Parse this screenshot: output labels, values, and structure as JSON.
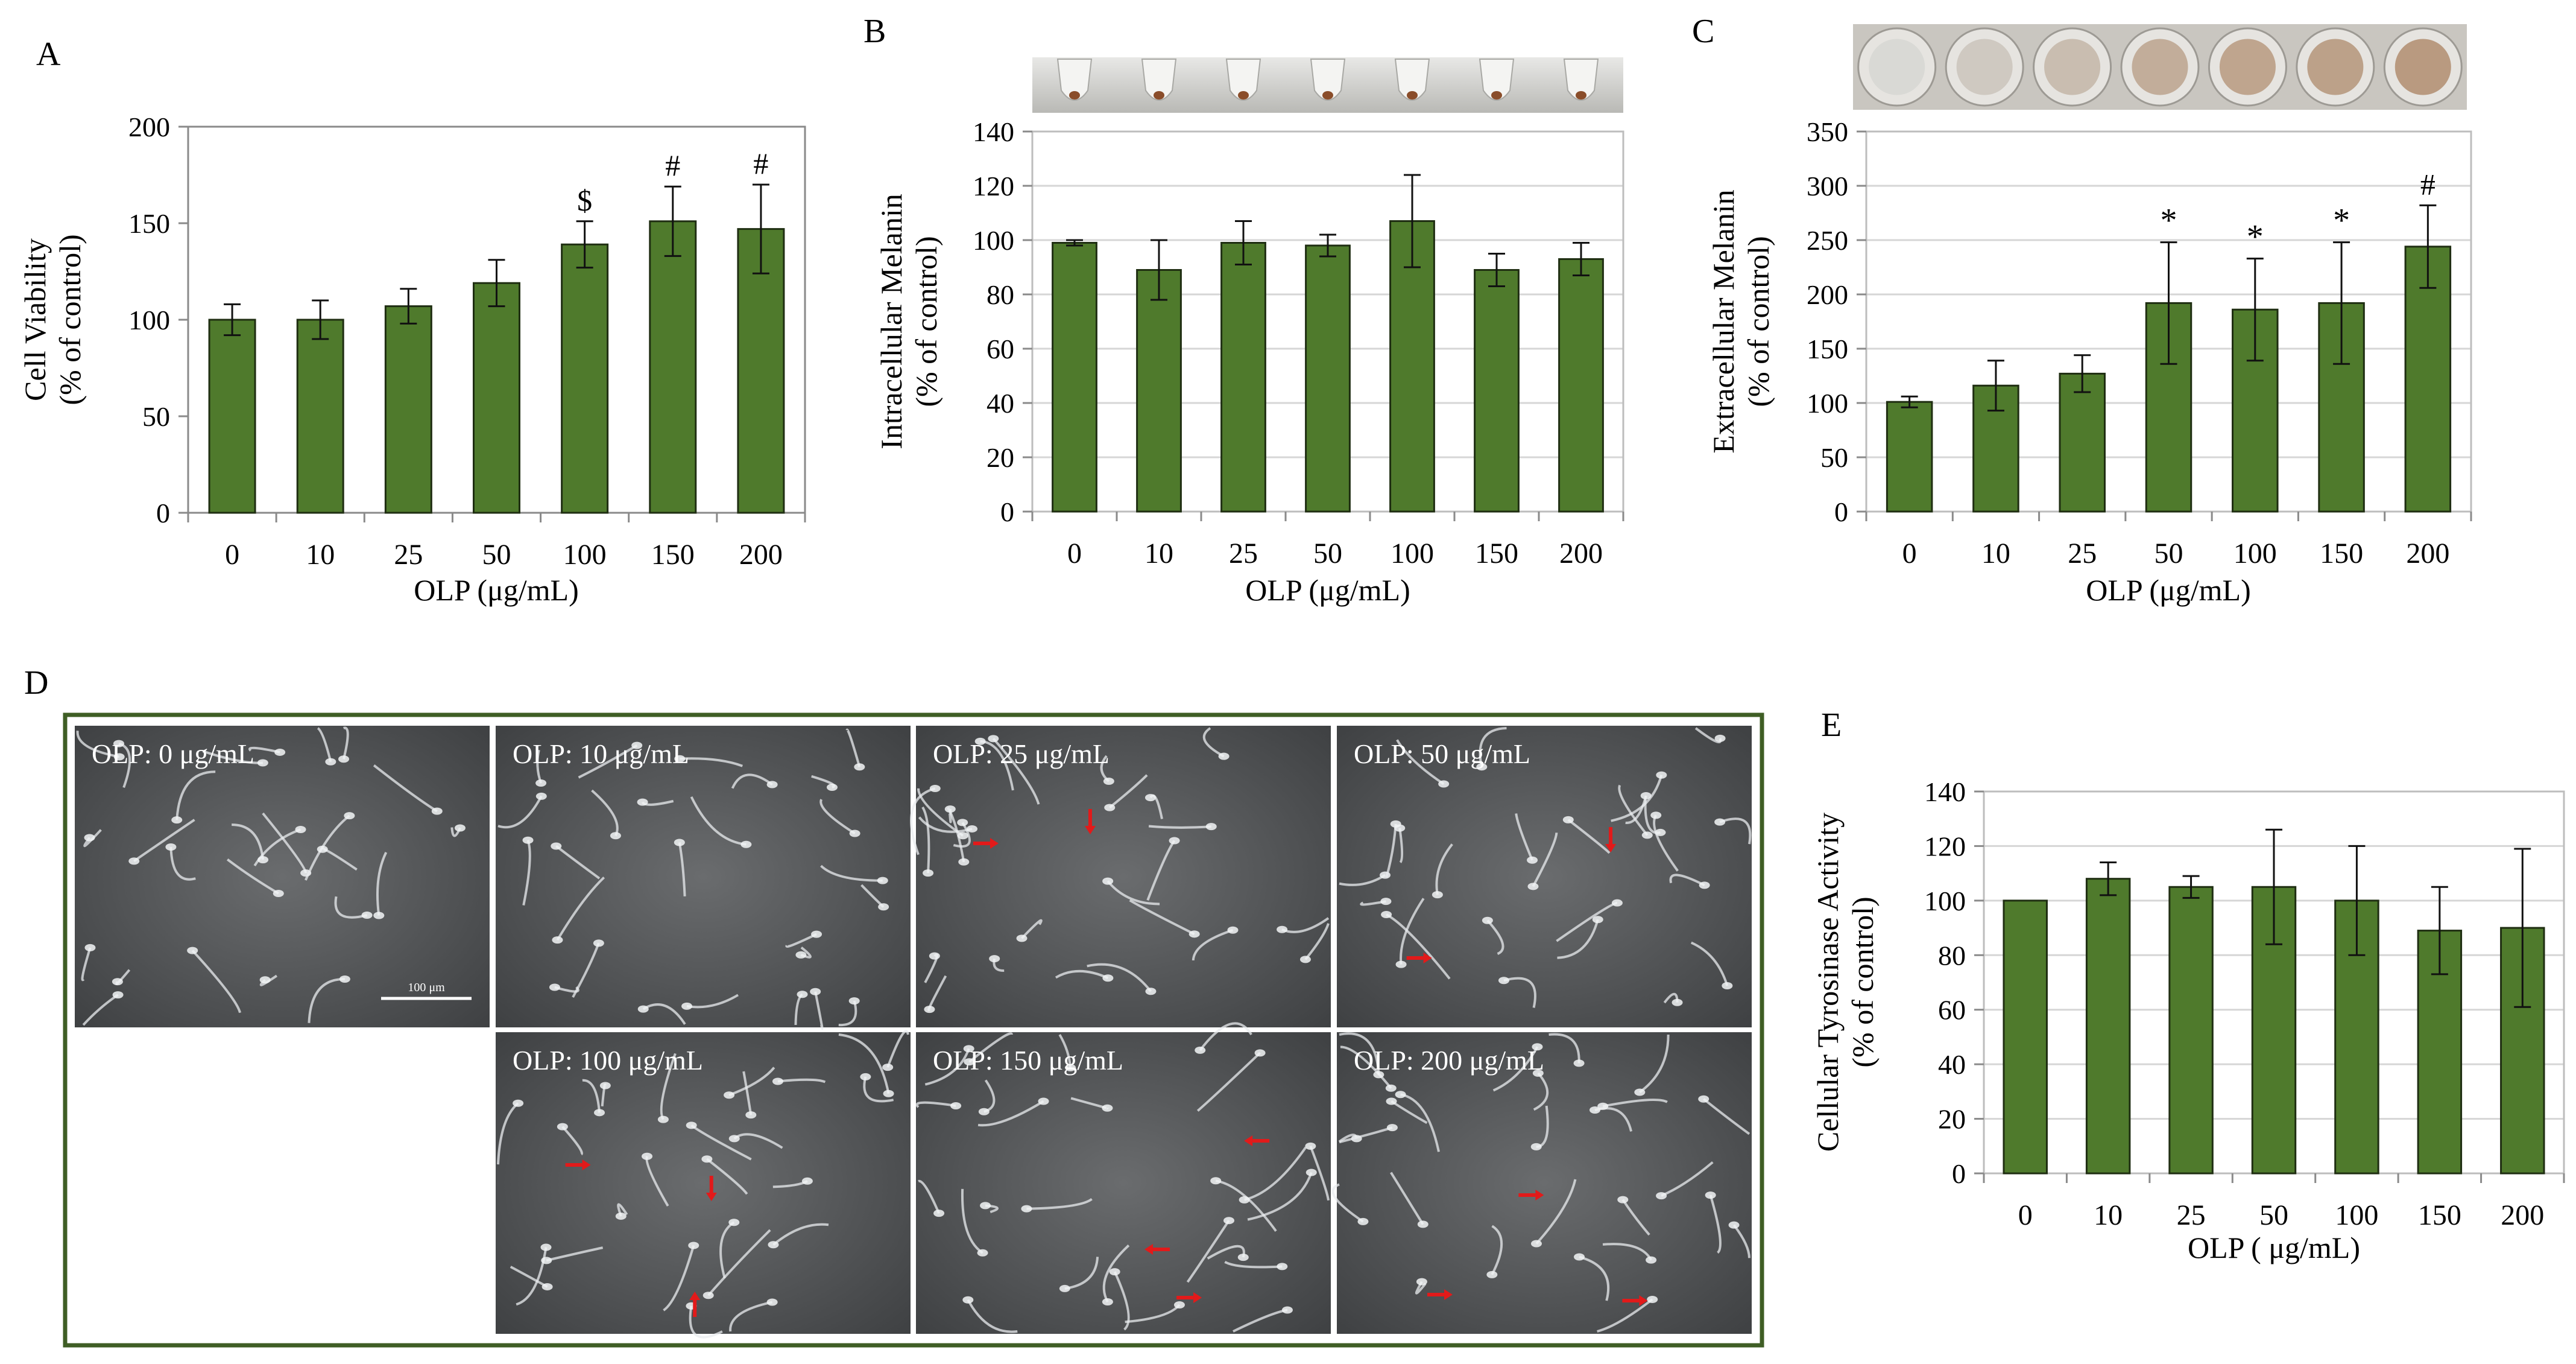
{
  "colors": {
    "bar_fill": "#4f7a2c",
    "bar_stroke": "#1f2e12",
    "axis": "#8a8a8a",
    "panel_border": "#3f5e25",
    "arrow": "#e21a1a",
    "micrograph_bg": "#5c5e60"
  },
  "chart_data": [
    {
      "panel": "A",
      "type": "bar",
      "categories": [
        "0",
        "10",
        "25",
        "50",
        "100",
        "150",
        "200"
      ],
      "values": [
        100,
        100,
        107,
        119,
        139,
        151,
        147
      ],
      "errors": [
        8,
        10,
        9,
        12,
        12,
        18,
        23
      ],
      "markers": [
        "",
        "",
        "",
        "",
        "$",
        "#",
        "#"
      ],
      "xlabel": "OLP  (μg/mL)",
      "ylabel": [
        "Cell Viability",
        "(% of control)"
      ],
      "ylim": [
        0,
        200
      ],
      "yticks": [
        "0",
        "50",
        "100",
        "150",
        "200"
      ],
      "grid": false
    },
    {
      "panel": "B",
      "type": "bar",
      "categories": [
        "0",
        "10",
        "25",
        "50",
        "100",
        "150",
        "200"
      ],
      "values": [
        99,
        89,
        99,
        98,
        107,
        89,
        93
      ],
      "errors": [
        1,
        11,
        8,
        4,
        17,
        6,
        6
      ],
      "markers": [
        "",
        "",
        "",
        "",
        "",
        "",
        ""
      ],
      "xlabel": "OLP (μg/mL)",
      "ylabel": [
        "Intracellular Melanin",
        "(% of control)"
      ],
      "ylim": [
        0,
        140
      ],
      "yticks": [
        "0",
        "20",
        "40",
        "60",
        "80",
        "100",
        "120",
        "140"
      ],
      "grid": true,
      "tube_strip": 7
    },
    {
      "panel": "C",
      "type": "bar",
      "categories": [
        "0",
        "10",
        "25",
        "50",
        "100",
        "150",
        "200"
      ],
      "values": [
        101,
        116,
        127,
        192,
        186,
        192,
        244
      ],
      "errors": [
        5,
        23,
        17,
        56,
        47,
        56,
        38
      ],
      "markers": [
        "",
        "",
        "",
        "*",
        "*",
        "*",
        "#"
      ],
      "xlabel": "OLP (μg/mL)",
      "ylabel": [
        "Extracellular Melanin",
        "(% of control)"
      ],
      "ylim": [
        0,
        350
      ],
      "yticks": [
        "0",
        "50",
        "100",
        "150",
        "200",
        "250",
        "300",
        "350"
      ],
      "grid": true,
      "well_strip": 7
    },
    {
      "panel": "E",
      "type": "bar",
      "categories": [
        "0",
        "10",
        "25",
        "50",
        "100",
        "150",
        "200"
      ],
      "values": [
        100,
        108,
        105,
        105,
        100,
        89,
        90
      ],
      "errors": [
        0,
        6,
        4,
        21,
        20,
        16,
        29
      ],
      "markers": [
        "",
        "",
        "",
        "",
        "",
        "",
        ""
      ],
      "xlabel": "OLP ( μg/mL)",
      "ylabel": [
        "Cellular Tyrosinase Activity",
        "(% of control)"
      ],
      "ylim": [
        0,
        140
      ],
      "yticks": [
        "0",
        "20",
        "40",
        "60",
        "80",
        "100",
        "120",
        "140"
      ],
      "grid": true
    }
  ],
  "micrographs": {
    "panel": "D",
    "labels": [
      "OLP: 0 μg/mL",
      "OLP: 10 μg/mL",
      "OLP: 25 μg/mL",
      "OLP: 50 μg/mL",
      "OLP: 100 μg/mL",
      "OLP: 150 μg/mL",
      "OLP: 200 μg/mL"
    ],
    "scale_bar": "100 μm",
    "arrow_counts": [
      0,
      0,
      2,
      2,
      3,
      4,
      3
    ]
  }
}
